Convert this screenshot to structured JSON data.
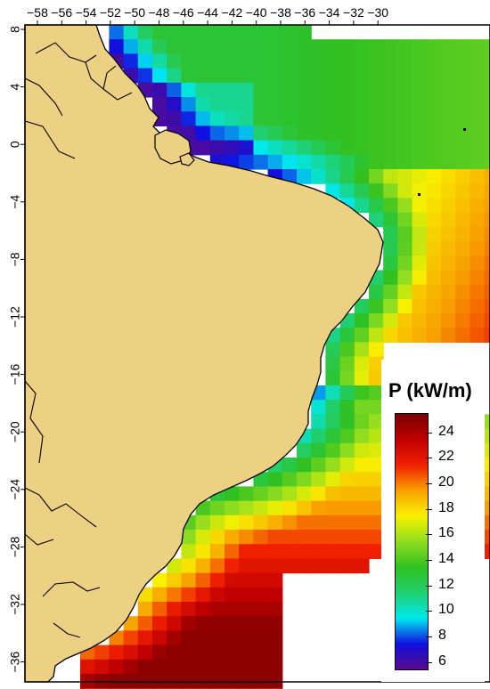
{
  "map": {
    "region": "Brazilian coast",
    "lon_ticks": [
      "−58",
      "−56",
      "−54",
      "−52",
      "−50",
      "−48",
      "−46",
      "−44",
      "−42",
      "−40",
      "−38",
      "−36",
      "−34",
      "−32",
      "−30"
    ],
    "lat_ticks": [
      "8",
      "4",
      "0",
      "−4",
      "−8",
      "−12",
      "−16",
      "−20",
      "−24",
      "−28",
      "−32",
      "−36"
    ],
    "colors": {
      "land": "#ecd083",
      "background": "#ffffff",
      "coastline": "#000000"
    }
  },
  "legend": {
    "title": "P (kW/m)",
    "labels": [
      "24",
      "22",
      "20",
      "18",
      "16",
      "14",
      "12",
      "10",
      "8",
      "6"
    ],
    "min": 5.5,
    "max": 25.5,
    "colormap": [
      "#5a0a8a",
      "#1010e0",
      "#00e8f0",
      "#20d070",
      "#30c020",
      "#90dd20",
      "#f8f000",
      "#f8a000",
      "#f02000",
      "#c00000",
      "#7a0000"
    ]
  }
}
